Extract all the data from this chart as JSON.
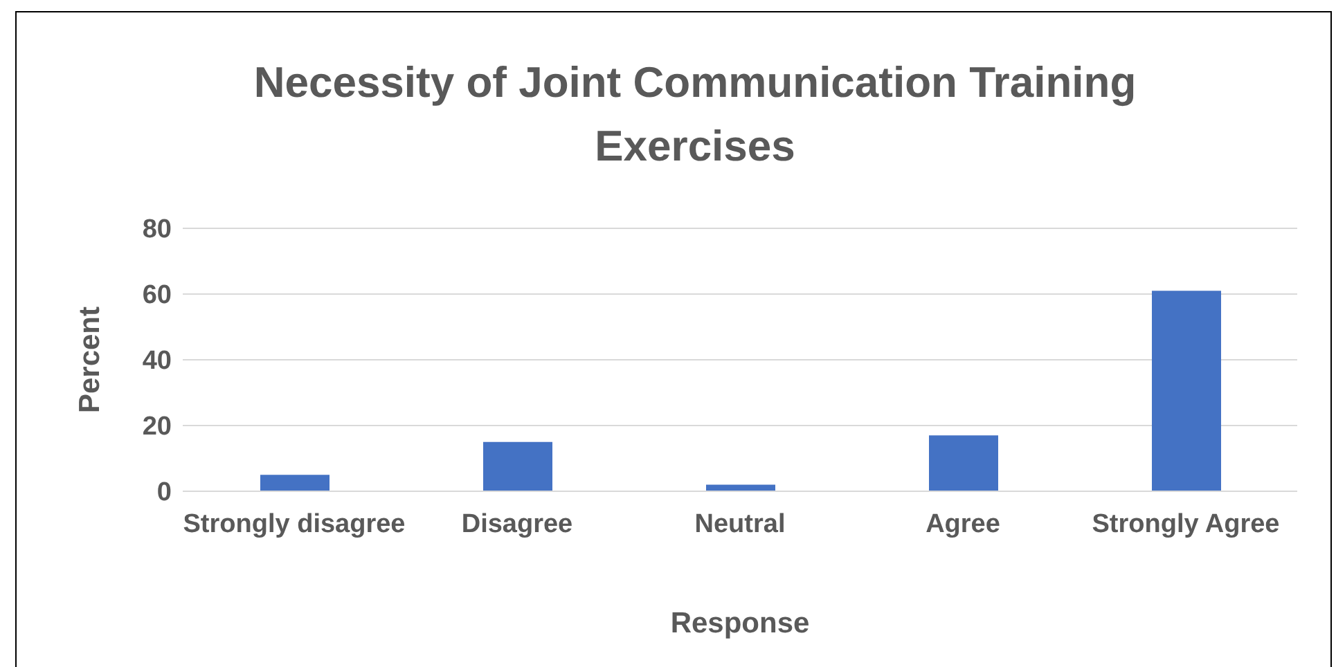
{
  "chart_data": {
    "type": "bar",
    "title": "Necessity of Joint Communication Training Exercises",
    "xlabel": "Response",
    "ylabel": "Percent",
    "categories": [
      "Strongly disagree",
      "Disagree",
      "Neutral",
      "Agree",
      "Strongly Agree"
    ],
    "values": [
      5,
      15,
      2,
      17,
      61
    ],
    "color": "#4472c4",
    "ylim": [
      0,
      80
    ],
    "yticks": [
      0,
      20,
      40,
      60,
      80
    ],
    "grid": "y"
  }
}
